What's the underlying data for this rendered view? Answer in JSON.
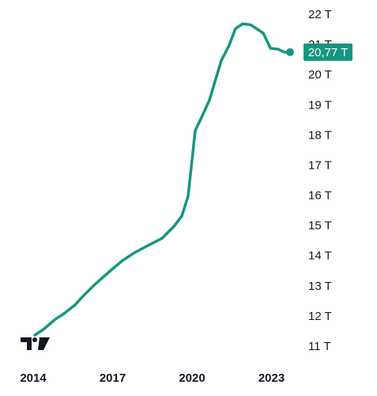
{
  "chart_data": {
    "type": "line",
    "x": [
      2014.06,
      2014.39,
      2014.84,
      2015.13,
      2015.58,
      2015.88,
      2016.33,
      2016.87,
      2017.37,
      2017.82,
      2018.27,
      2018.87,
      2019.31,
      2019.61,
      2019.85,
      2020.12,
      2020.36,
      2020.66,
      2021.1,
      2021.4,
      2021.64,
      2021.91,
      2022.21,
      2022.69,
      2022.96,
      2023.25,
      2023.49,
      2023.7
    ],
    "values": [
      11.39,
      11.58,
      11.92,
      12.08,
      12.39,
      12.68,
      13.07,
      13.49,
      13.86,
      14.12,
      14.33,
      14.6,
      14.99,
      15.33,
      15.99,
      18.17,
      18.61,
      19.19,
      20.48,
      21.0,
      21.55,
      21.71,
      21.68,
      21.4,
      20.9,
      20.87,
      20.77,
      20.77
    ],
    "value_labels": [
      null,
      null,
      null,
      null,
      null,
      null,
      null,
      null,
      null,
      null,
      null,
      null,
      null,
      null,
      null,
      null,
      null,
      null,
      null,
      null,
      null,
      null,
      null,
      null,
      null,
      null,
      null,
      "20,77 T"
    ],
    "color": "#16967f",
    "xlim": [
      2013,
      2024
    ],
    "xticks": [
      2014,
      2017,
      2020,
      2023
    ],
    "ylim": [
      10.5,
      22.5
    ],
    "yticks": [
      {
        "value": 11,
        "label": "11 T"
      },
      {
        "value": 12,
        "label": "12 T"
      },
      {
        "value": 13,
        "label": "13 T"
      },
      {
        "value": 14,
        "label": "14 T"
      },
      {
        "value": 15,
        "label": "15 T"
      },
      {
        "value": 16,
        "label": "16 T"
      },
      {
        "value": 17,
        "label": "17 T"
      },
      {
        "value": 18,
        "label": "18 T"
      },
      {
        "value": 19,
        "label": "19 T"
      },
      {
        "value": 20,
        "label": "20 T"
      },
      {
        "value": 21,
        "label": "21 T"
      },
      {
        "value": 22,
        "label": "22 T"
      }
    ]
  }
}
